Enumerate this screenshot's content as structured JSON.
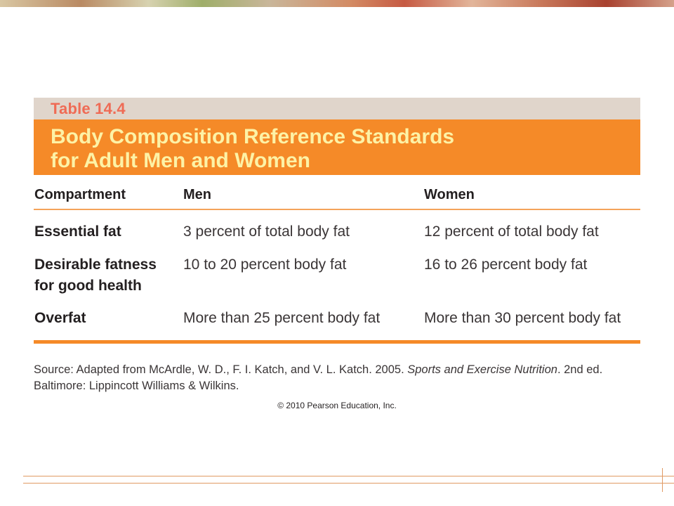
{
  "table": {
    "label": "Table 14.4",
    "title_line1": "Body Composition Reference Standards",
    "title_line2": "for Adult Men and Women",
    "headers": [
      "Compartment",
      "Men",
      "Women"
    ],
    "rows": [
      {
        "label_lines": [
          "Essential fat"
        ],
        "men": "3 percent of total body fat",
        "women": "12 percent of total body fat"
      },
      {
        "label_lines": [
          "Desirable fatness",
          "for good health"
        ],
        "men": "10 to 20 percent body fat",
        "women": "16 to 26 percent body fat"
      },
      {
        "label_lines": [
          "Overfat"
        ],
        "men": "More than 25 percent body fat",
        "women": "More than 30 percent body fat"
      }
    ]
  },
  "source": {
    "prefix": "Source: Adapted from McArdle, W. D., F. I. Katch, and V. L. Katch. 2005. ",
    "book_title": "Sports and Exercise Nutrition",
    "suffix": ". 2nd ed. Baltimore: Lippincott Williams & Wilkins."
  },
  "copyright": "© 2010 Pearson Education, Inc."
}
